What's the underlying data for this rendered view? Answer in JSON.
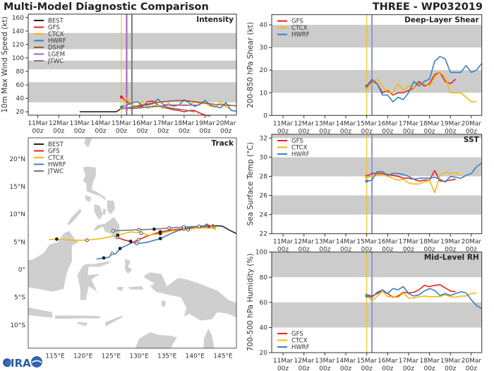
{
  "header": {
    "title": "Multi-Model Diagnostic Comparison",
    "storm": "THREE - WP032019"
  },
  "logo": {
    "text": "CIRA"
  },
  "colors": {
    "BEST": "#222222",
    "GFS": "#e8201e",
    "CTCX": "#f2b90c",
    "HWRF": "#3a80c2",
    "DSHP": "#9a5a30",
    "LGEM": "#a35fb5",
    "JTWC": "#7a7a7a",
    "band": "#cccccc",
    "land": "#cfcfcf"
  },
  "time_ticks": {
    "days": [
      "11Mar",
      "12Mar",
      "13Mar",
      "14Mar",
      "15Mar",
      "16Mar",
      "17Mar",
      "18Mar",
      "19Mar",
      "20Mar"
    ],
    "hour": "00z"
  },
  "chart_data": [
    {
      "id": "intensity",
      "type": "line",
      "title": "Intensity",
      "ylabel": "10m Max Wind Speed (kt)",
      "ylim": [
        15,
        165
      ],
      "yticks": [
        20,
        40,
        60,
        80,
        100,
        120,
        140,
        160
      ],
      "bands": [
        [
          34,
          64
        ],
        [
          83,
          96
        ],
        [
          113,
          137
        ]
      ],
      "xlim": [
        "2019-03-10T13",
        "2019-03-20T12"
      ],
      "legend": "top-left",
      "init_lines": [
        {
          "name": "CTCX",
          "time": "2019-03-15T00"
        },
        {
          "name": "LGEM",
          "time": "2019-03-15T06"
        },
        {
          "name": "JTWC",
          "time": "2019-03-15T12"
        }
      ],
      "series": [
        {
          "name": "BEST",
          "start": "2019-03-13T00",
          "step_hours": 6,
          "values": [
            20,
            20,
            20,
            20,
            20,
            20,
            20,
            20,
            25
          ]
        },
        {
          "name": "GFS",
          "start": "2019-03-15T00",
          "step_hours": 6,
          "values": [
            42,
            35,
            30,
            28,
            28,
            35,
            36,
            30,
            27,
            25,
            23,
            22,
            20,
            22,
            22,
            18,
            15,
            14
          ]
        },
        {
          "name": "CTCX",
          "start": "2019-03-15T00",
          "step_hours": 6,
          "values": [
            25,
            40,
            30,
            28,
            35,
            25,
            29,
            30,
            25,
            33,
            28,
            30,
            29,
            30,
            35,
            32,
            33,
            28,
            27,
            35,
            27,
            24
          ]
        },
        {
          "name": "HWRF",
          "start": "2019-03-15T00",
          "step_hours": 6,
          "values": [
            27,
            30,
            33,
            35,
            30,
            30,
            32,
            39,
            31,
            30,
            29,
            30,
            38,
            33,
            28,
            31,
            37,
            30,
            28,
            26,
            34,
            22,
            21
          ]
        },
        {
          "name": "DSHP",
          "start": "2019-03-15T00",
          "step_hours": 12,
          "values": [
            25,
            27,
            30,
            33,
            35,
            36.5,
            37,
            35,
            33,
            31,
            30,
            29
          ]
        },
        {
          "name": "LGEM",
          "start": "2019-03-15T06",
          "step_hours": 12,
          "values": [
            25,
            26,
            27,
            28,
            30,
            30,
            30,
            30
          ]
        },
        {
          "name": "JTWC",
          "start": "2019-03-15T12",
          "step_hours": 12,
          "values": [
            25,
            26,
            28,
            28,
            25,
            23,
            20
          ]
        }
      ]
    },
    {
      "id": "shear",
      "type": "line",
      "title": "Deep-Layer Shear",
      "ylabel": "200-850 hPa Shear (kt)",
      "ylim": [
        0,
        44.5
      ],
      "yticks": [
        0,
        10,
        20,
        30,
        40
      ],
      "bands": [
        [
          10,
          20
        ],
        [
          30,
          40
        ]
      ],
      "xlim": [
        "2019-03-10T11",
        "2019-03-20T12"
      ],
      "legend": "top-left",
      "init_lines": [
        {
          "name": "CTCX",
          "time": "2019-03-15T00"
        },
        {
          "name": "HWRF",
          "time": "2019-03-15T06"
        }
      ],
      "series": [
        {
          "name": "GFS",
          "start": "2019-03-15T00",
          "step_hours": 6,
          "values": [
            13,
            15,
            14,
            10,
            11,
            9,
            10,
            10,
            11,
            12,
            15,
            13,
            14,
            18,
            19,
            15,
            14,
            16
          ]
        },
        {
          "name": "CTCX",
          "start": "2019-03-15T00",
          "step_hours": 6,
          "values": [
            12,
            14,
            16,
            13,
            10,
            10,
            14,
            11,
            13,
            12,
            14,
            14,
            13,
            17,
            19,
            17,
            10,
            10,
            10,
            8,
            6,
            6
          ]
        },
        {
          "name": "HWRF",
          "start": "2019-03-15T00",
          "step_hours": 6,
          "values": [
            13,
            16,
            14,
            9,
            9,
            6,
            8,
            7,
            10,
            15,
            13,
            15,
            16,
            24,
            26,
            25,
            19,
            19,
            19,
            22,
            19,
            20,
            23
          ]
        }
      ]
    },
    {
      "id": "sst",
      "type": "line",
      "title": "SST",
      "ylabel": "Sea Surface Temp (°C)",
      "ylim": [
        22,
        32.4
      ],
      "yticks": [
        22,
        24,
        26,
        28,
        30,
        32
      ],
      "bands": [
        [
          24,
          26
        ],
        [
          28,
          30
        ],
        [
          32,
          32.4
        ]
      ],
      "xlim": [
        "2019-03-10T11",
        "2019-03-20T12"
      ],
      "legend": "top-left",
      "init_lines": [
        {
          "name": "CTCX",
          "time": "2019-03-15T00"
        },
        {
          "name": "HWRF",
          "time": "2019-03-15T06"
        }
      ],
      "series": [
        {
          "name": "GFS",
          "start": "2019-03-15T00",
          "step_hours": 6,
          "values": [
            28.0,
            28.3,
            28.3,
            28.3,
            28.2,
            28.1,
            28.0,
            27.8,
            27.8,
            27.7,
            27.5,
            27.6,
            27.6,
            28.6,
            27.5,
            27.5,
            27.6,
            27.7
          ]
        },
        {
          "name": "CTCX",
          "start": "2019-03-15T00",
          "step_hours": 6,
          "values": [
            27.9,
            28.0,
            28.1,
            28.2,
            28.0,
            27.8,
            27.6,
            27.7,
            27.3,
            27.2,
            27.2,
            27.4,
            27.6,
            26.3,
            28.1,
            28.4,
            28.3,
            28.4,
            28.1
          ]
        },
        {
          "name": "HWRF",
          "start": "2019-03-15T00",
          "step_hours": 6,
          "values": [
            27.5,
            27.6,
            28.5,
            28.5,
            28.1,
            28.3,
            28.3,
            28.2,
            28.0,
            27.7,
            27.8,
            27.8,
            27.8,
            27.9,
            27.7,
            27.4,
            28.0,
            27.9,
            27.8,
            28.1,
            28.3,
            29.0,
            29.4
          ]
        }
      ]
    },
    {
      "id": "rh",
      "type": "line",
      "title": "Mid-Level RH",
      "ylabel": "700-500 hPa Humidity (%)",
      "ylim": [
        20,
        100
      ],
      "yticks": [
        20,
        40,
        60,
        80,
        100
      ],
      "bands": [
        [
          40,
          60
        ],
        [
          80,
          100
        ]
      ],
      "xlim": [
        "2019-03-10T11",
        "2019-03-20T12"
      ],
      "legend": "bottom-left",
      "init_lines": [
        {
          "name": "CTCX",
          "time": "2019-03-15T00"
        },
        {
          "name": "HWRF",
          "time": "2019-03-15T06"
        }
      ],
      "series": [
        {
          "name": "GFS",
          "start": "2019-03-15T00",
          "step_hours": 6,
          "values": [
            66,
            65,
            67,
            69,
            67,
            64,
            65,
            68,
            67.5,
            68,
            70,
            73.5,
            72.5,
            73.5,
            74,
            71.5,
            69,
            68.5
          ]
        },
        {
          "name": "CTCX",
          "start": "2019-03-15T00",
          "step_hours": 6,
          "values": [
            66,
            61,
            65,
            69,
            64.5,
            64.5,
            64,
            67.5,
            63.5,
            63.5,
            64.5,
            65,
            64.5,
            64.5,
            64.5,
            66,
            64.5,
            64,
            65,
            65,
            67,
            67.5
          ]
        },
        {
          "name": "HWRF",
          "start": "2019-03-15T00",
          "step_hours": 6,
          "values": [
            65,
            64,
            68,
            70,
            67,
            71,
            70,
            72.5,
            67,
            65,
            66,
            69,
            71,
            69.5,
            65.5,
            67,
            65.5,
            67,
            68.5,
            67.5,
            62,
            57.5,
            55
          ]
        }
      ]
    },
    {
      "id": "track",
      "type": "map",
      "title": "Track",
      "lon_range": [
        110.2,
        147.4
      ],
      "lat_range": [
        -14.2,
        23.8
      ],
      "lon_ticks": [
        {
          "v": 115,
          "label": "115°E"
        },
        {
          "v": 120,
          "label": "120°E"
        },
        {
          "v": 125,
          "label": "125°E"
        },
        {
          "v": 130,
          "label": "130°E"
        },
        {
          "v": 135,
          "label": "135°E"
        },
        {
          "v": 140,
          "label": "140°E"
        },
        {
          "v": 145,
          "label": "145°E"
        }
      ],
      "lat_ticks": [
        {
          "v": 20,
          "label": "20°N"
        },
        {
          "v": 15,
          "label": "15°N"
        },
        {
          "v": 10,
          "label": "10°N"
        },
        {
          "v": 5,
          "label": "5°N"
        },
        {
          "v": 0,
          "label": "0°"
        },
        {
          "v": -5,
          "label": "5°S"
        },
        {
          "v": -10,
          "label": "10°S"
        }
      ],
      "legend": "top-left",
      "series": [
        {
          "name": "BEST",
          "points": [
            [
              147.4,
              6.5
            ],
            [
              146,
              7.2
            ],
            [
              145,
              7.8
            ],
            [
              144.3,
              7.9
            ],
            [
              143.2,
              7.9
            ]
          ]
        },
        {
          "name": "GFS",
          "points": [
            [
              142.5,
              7.8
            ],
            [
              140,
              7.6
            ],
            [
              138,
              7.4
            ],
            [
              135.5,
              7.1
            ],
            [
              133.8,
              6.8
            ],
            [
              131.6,
              6.1
            ],
            [
              129.9,
              5.4
            ],
            [
              128.9,
              4.9
            ],
            [
              128.5,
              5.1
            ],
            [
              127.5,
              5.3
            ],
            [
              126.1,
              5.8
            ]
          ]
        },
        {
          "name": "CTCX",
          "points": [
            [
              143.5,
              7.5
            ],
            [
              140.1,
              7.5
            ],
            [
              138.8,
              7.2
            ],
            [
              135.9,
              7.0
            ],
            [
              133.8,
              6.5
            ],
            [
              131.7,
              6.2
            ],
            [
              130.4,
              6.6
            ],
            [
              128.5,
              6.8
            ],
            [
              126.2,
              6.2
            ],
            [
              123.3,
              5.6
            ],
            [
              120.7,
              5.3
            ],
            [
              118.2,
              5.3
            ],
            [
              115.3,
              5.5
            ],
            [
              113.9,
              5.4
            ]
          ]
        },
        {
          "name": "HWRF",
          "points": [
            [
              142.1,
              8.0
            ],
            [
              140,
              7.7
            ],
            [
              138,
              7.4
            ],
            [
              135.9,
              6.6
            ],
            [
              133.8,
              5.6
            ],
            [
              131.4,
              4.9
            ],
            [
              129.6,
              4.7
            ],
            [
              128.9,
              4.9
            ],
            [
              126.6,
              3.8
            ],
            [
              125.8,
              2.8
            ],
            [
              125.2,
              2.9
            ],
            [
              124.6,
              2.2
            ],
            [
              123.7,
              2.1
            ],
            [
              122.4,
              1.9
            ]
          ]
        },
        {
          "name": "JTWC",
          "points": [
            [
              143.2,
              7.9
            ],
            [
              140.7,
              7.8
            ],
            [
              138,
              7.7
            ],
            [
              135.4,
              7.5
            ],
            [
              132.7,
              7.3
            ],
            [
              130,
              7.2
            ],
            [
              125.4,
              7.0
            ]
          ]
        }
      ]
    }
  ]
}
